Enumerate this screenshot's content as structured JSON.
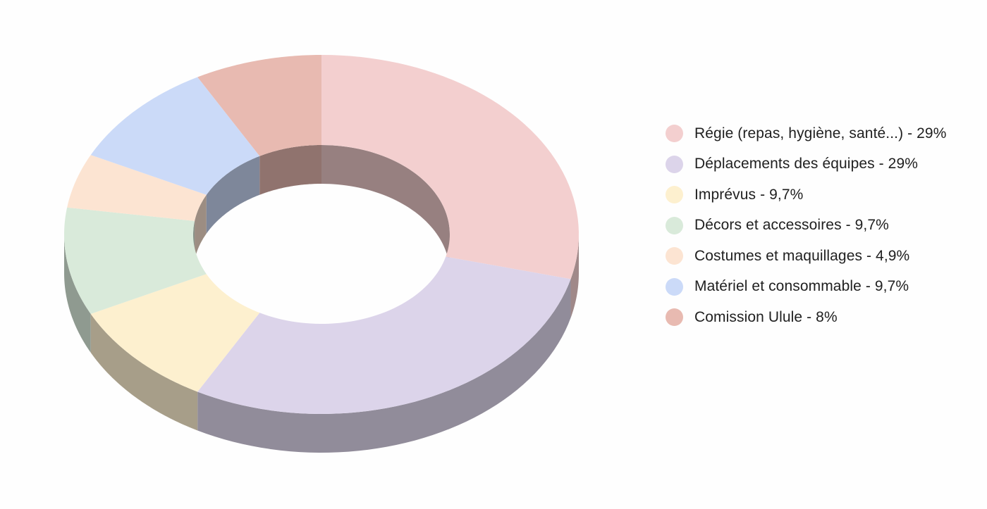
{
  "chart_data": {
    "type": "pie",
    "variant": "3d-donut",
    "title": "",
    "legend_position": "right",
    "slices": [
      {
        "label": "Régie (repas, hygiène, santé...) - 29%",
        "value": 29,
        "color": "#f3cfcf"
      },
      {
        "label": "Déplacements des équipes - 29%",
        "value": 29,
        "color": "#dcd4ea"
      },
      {
        "label": "Imprévus - 9,7%",
        "value": 9.7,
        "color": "#fdf0cf"
      },
      {
        "label": "Décors et accessoires - 9,7%",
        "value": 9.7,
        "color": "#d9eada"
      },
      {
        "label": "Costumes et maquillages - 4,9%",
        "value": 4.9,
        "color": "#fce4d2"
      },
      {
        "label": "Matériel et consommable - 9,7%",
        "value": 9.7,
        "color": "#cbdaf8"
      },
      {
        "label": "Comission Ulule - 8%",
        "value": 8,
        "color": "#e8bab1"
      }
    ]
  }
}
